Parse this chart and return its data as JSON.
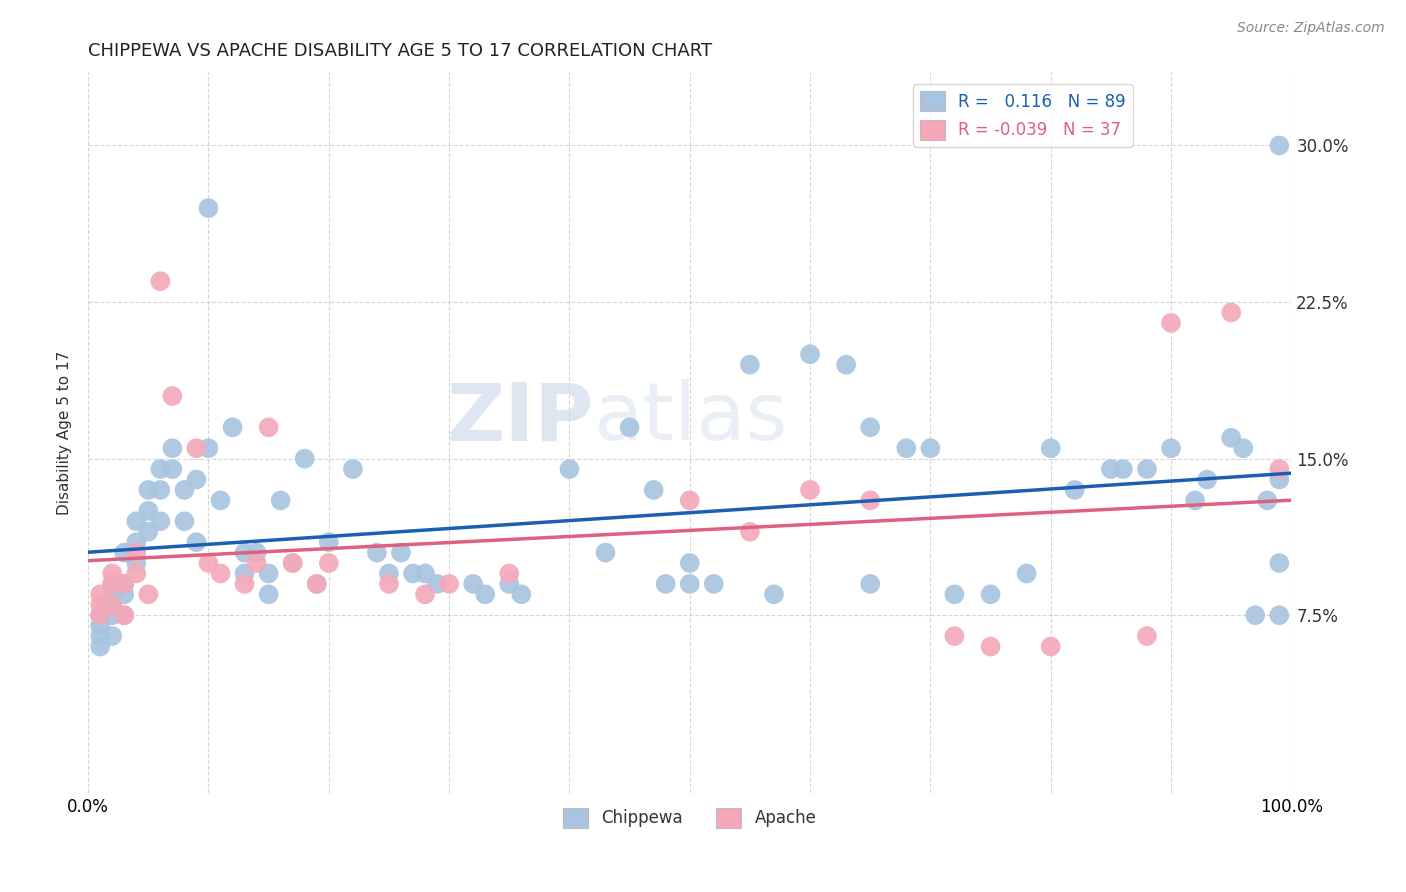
{
  "title": "CHIPPEWA VS APACHE DISABILITY AGE 5 TO 17 CORRELATION CHART",
  "source": "Source: ZipAtlas.com",
  "ylabel": "Disability Age 5 to 17",
  "ytick_labels": [
    "7.5%",
    "15.0%",
    "22.5%",
    "30.0%"
  ],
  "ytick_values": [
    0.075,
    0.15,
    0.225,
    0.3
  ],
  "xlim": [
    0.0,
    1.0
  ],
  "ylim": [
    -0.01,
    0.335
  ],
  "legend_blue_label": "R =   0.116   N = 89",
  "legend_pink_label": "R = -0.039   N = 37",
  "chippewa_color": "#a8c4e0",
  "apache_color": "#f4a8b8",
  "chippewa_line_color": "#1a5fb4",
  "apache_line_color": "#e06080",
  "watermark_zip": "ZIP",
  "watermark_atlas": "atlas",
  "chippewa_x": [
    0.01,
    0.01,
    0.01,
    0.01,
    0.01,
    0.02,
    0.02,
    0.02,
    0.02,
    0.02,
    0.03,
    0.03,
    0.03,
    0.03,
    0.04,
    0.04,
    0.04,
    0.05,
    0.05,
    0.05,
    0.06,
    0.06,
    0.06,
    0.07,
    0.07,
    0.08,
    0.08,
    0.09,
    0.09,
    0.1,
    0.1,
    0.11,
    0.12,
    0.13,
    0.13,
    0.14,
    0.15,
    0.15,
    0.16,
    0.17,
    0.18,
    0.19,
    0.2,
    0.22,
    0.24,
    0.25,
    0.26,
    0.27,
    0.28,
    0.29,
    0.32,
    0.33,
    0.35,
    0.36,
    0.4,
    0.43,
    0.45,
    0.47,
    0.48,
    0.5,
    0.5,
    0.52,
    0.55,
    0.57,
    0.6,
    0.63,
    0.65,
    0.65,
    0.68,
    0.7,
    0.72,
    0.75,
    0.78,
    0.8,
    0.82,
    0.85,
    0.86,
    0.88,
    0.9,
    0.92,
    0.93,
    0.95,
    0.96,
    0.97,
    0.98,
    0.99,
    0.99,
    0.99,
    0.99
  ],
  "chippewa_y": [
    0.075,
    0.075,
    0.07,
    0.065,
    0.06,
    0.09,
    0.085,
    0.08,
    0.075,
    0.065,
    0.105,
    0.09,
    0.085,
    0.075,
    0.12,
    0.11,
    0.1,
    0.135,
    0.125,
    0.115,
    0.145,
    0.135,
    0.12,
    0.155,
    0.145,
    0.135,
    0.12,
    0.14,
    0.11,
    0.27,
    0.155,
    0.13,
    0.165,
    0.105,
    0.095,
    0.105,
    0.095,
    0.085,
    0.13,
    0.1,
    0.15,
    0.09,
    0.11,
    0.145,
    0.105,
    0.095,
    0.105,
    0.095,
    0.095,
    0.09,
    0.09,
    0.085,
    0.09,
    0.085,
    0.145,
    0.105,
    0.165,
    0.135,
    0.09,
    0.1,
    0.09,
    0.09,
    0.195,
    0.085,
    0.2,
    0.195,
    0.165,
    0.09,
    0.155,
    0.155,
    0.085,
    0.085,
    0.095,
    0.155,
    0.135,
    0.145,
    0.145,
    0.145,
    0.155,
    0.13,
    0.14,
    0.16,
    0.155,
    0.075,
    0.13,
    0.075,
    0.14,
    0.1,
    0.3
  ],
  "apache_x": [
    0.01,
    0.01,
    0.01,
    0.02,
    0.02,
    0.02,
    0.03,
    0.03,
    0.04,
    0.04,
    0.05,
    0.06,
    0.07,
    0.09,
    0.1,
    0.11,
    0.13,
    0.14,
    0.15,
    0.17,
    0.19,
    0.2,
    0.25,
    0.28,
    0.3,
    0.35,
    0.5,
    0.55,
    0.6,
    0.65,
    0.72,
    0.75,
    0.8,
    0.88,
    0.9,
    0.95,
    0.99
  ],
  "apache_y": [
    0.085,
    0.08,
    0.075,
    0.095,
    0.09,
    0.08,
    0.09,
    0.075,
    0.105,
    0.095,
    0.085,
    0.235,
    0.18,
    0.155,
    0.1,
    0.095,
    0.09,
    0.1,
    0.165,
    0.1,
    0.09,
    0.1,
    0.09,
    0.085,
    0.09,
    0.095,
    0.13,
    0.115,
    0.135,
    0.13,
    0.065,
    0.06,
    0.06,
    0.065,
    0.215,
    0.22,
    0.145
  ]
}
